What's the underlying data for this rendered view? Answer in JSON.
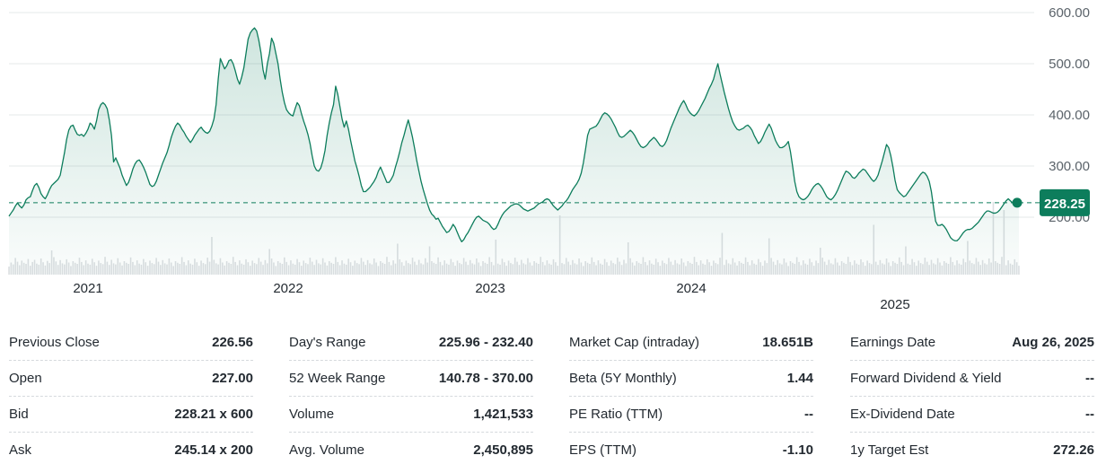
{
  "chart_data": {
    "type": "area",
    "ylim": [
      100,
      620
    ],
    "y_ticks": [
      "600.00",
      "500.00",
      "400.00",
      "300.00",
      "200.00"
    ],
    "y_tick_values": [
      600,
      500,
      400,
      300,
      200
    ],
    "x_tick_labels": [
      "2021",
      "2022",
      "2023",
      "2024",
      "2025"
    ],
    "last_price": 228.25,
    "last_price_label": "228.25",
    "colors": {
      "line": "#0d7d5c",
      "fill": "#0d7d5c",
      "badge_bg": "#0d7d5c",
      "badge_text": "#ffffff",
      "grid": "#e6e8ea",
      "volume": "#dcdfe2",
      "axis_text": "#5b636a"
    },
    "series": [
      {
        "values": [
          202,
          208,
          214,
          222,
          228,
          222,
          218,
          224,
          234,
          238,
          240,
          252,
          262,
          266,
          258,
          246,
          240,
          236,
          244,
          254,
          262,
          266,
          270,
          274,
          282,
          304,
          326,
          352,
          370,
          378,
          380,
          370,
          362,
          360,
          362,
          358,
          364,
          372,
          384,
          380,
          372,
          388,
          410,
          420,
          424,
          420,
          412,
          390,
          360,
          308,
          316,
          306,
          296,
          282,
          272,
          262,
          268,
          280,
          294,
          304,
          310,
          312,
          306,
          298,
          288,
          276,
          264,
          260,
          262,
          270,
          282,
          294,
          306,
          316,
          326,
          340,
          356,
          368,
          378,
          384,
          380,
          372,
          366,
          358,
          352,
          346,
          352,
          360,
          366,
          372,
          376,
          370,
          366,
          364,
          368,
          378,
          392,
          420,
          470,
          510,
          500,
          490,
          496,
          506,
          508,
          500,
          486,
          470,
          460,
          474,
          492,
          520,
          548,
          560,
          566,
          570,
          564,
          546,
          522,
          488,
          470,
          500,
          520,
          550,
          540,
          520,
          500,
          470,
          444,
          424,
          410,
          404,
          400,
          398,
          412,
          424,
          418,
          402,
          388,
          376,
          362,
          344,
          320,
          300,
          292,
          290,
          296,
          310,
          330,
          360,
          384,
          404,
          420,
          456,
          440,
          416,
          392,
          376,
          388,
          372,
          350,
          330,
          310,
          296,
          280,
          262,
          250,
          250,
          254,
          258,
          264,
          270,
          278,
          290,
          298,
          288,
          278,
          268,
          268,
          274,
          282,
          298,
          312,
          328,
          346,
          360,
          376,
          390,
          374,
          356,
          334,
          310,
          290,
          270,
          254,
          240,
          226,
          214,
          206,
          202,
          196,
          198,
          190,
          182,
          176,
          170,
          172,
          178,
          186,
          180,
          170,
          160,
          152,
          156,
          164,
          170,
          178,
          186,
          194,
          200,
          202,
          198,
          194,
          192,
          190,
          186,
          180,
          176,
          178,
          186,
          196,
          204,
          210,
          214,
          218,
          222,
          224,
          226,
          226,
          224,
          220,
          216,
          214,
          212,
          214,
          216,
          218,
          222,
          226,
          228,
          230,
          234,
          236,
          234,
          228,
          222,
          218,
          214,
          218,
          222,
          228,
          232,
          238,
          246,
          254,
          260,
          266,
          274,
          286,
          306,
          332,
          360,
          372,
          374,
          376,
          378,
          384,
          392,
          400,
          404,
          402,
          398,
          392,
          384,
          376,
          366,
          358,
          356,
          358,
          362,
          366,
          370,
          366,
          360,
          352,
          344,
          338,
          336,
          338,
          342,
          348,
          352,
          356,
          352,
          346,
          340,
          338,
          342,
          350,
          362,
          374,
          384,
          394,
          404,
          414,
          422,
          428,
          420,
          410,
          404,
          400,
          398,
          402,
          408,
          416,
          424,
          432,
          442,
          452,
          460,
          470,
          486,
          500,
          480,
          462,
          444,
          428,
          412,
          398,
          386,
          378,
          372,
          370,
          372,
          374,
          378,
          380,
          376,
          370,
          360,
          352,
          344,
          348,
          356,
          366,
          374,
          382,
          374,
          362,
          350,
          342,
          336,
          336,
          338,
          342,
          348,
          328,
          300,
          270,
          250,
          240,
          236,
          234,
          236,
          240,
          246,
          254,
          260,
          264,
          266,
          262,
          256,
          248,
          240,
          236,
          234,
          238,
          244,
          252,
          262,
          272,
          282,
          290,
          288,
          284,
          278,
          276,
          280,
          286,
          290,
          294,
          292,
          286,
          280,
          274,
          270,
          274,
          282,
          296,
          310,
          326,
          342,
          336,
          320,
          298,
          272,
          254,
          248,
          244,
          240,
          242,
          248,
          254,
          260,
          266,
          272,
          278,
          284,
          288,
          286,
          280,
          270,
          250,
          220,
          192,
          184,
          184,
          186,
          182,
          176,
          168,
          160,
          156,
          154,
          154,
          158,
          164,
          170,
          174,
          176,
          176,
          178,
          182,
          186,
          190,
          196,
          202,
          208,
          212,
          212,
          210,
          208,
          208,
          210,
          214,
          220,
          226,
          232,
          236,
          232,
          228,
          226,
          228,
          228
        ]
      }
    ],
    "volume_rel": [
      0.3,
      0.45,
      0.38,
      0.62,
      0.48,
      0.35,
      0.52,
      0.44,
      0.4,
      0.58,
      0.33,
      0.47,
      0.55,
      0.41,
      0.37,
      0.6,
      0.46,
      0.34,
      0.51,
      0.43,
      0.39,
      0.65,
      0.49,
      0.36,
      0.54,
      0.42,
      0.38,
      0.57,
      0.45,
      0.32,
      0.5,
      0.44,
      0.4,
      0.63,
      0.47,
      0.35,
      0.53,
      0.41,
      0.37,
      0.59,
      0.46,
      0.33,
      0.52,
      0.43,
      0.39,
      0.66,
      0.48,
      0.36,
      0.55,
      0.42,
      0.38,
      0.61,
      0.45,
      0.34,
      0.5,
      0.44,
      0.4,
      0.64,
      0.47,
      0.35,
      0.53,
      0.41,
      0.37,
      0.58,
      0.46,
      0.33,
      0.52,
      0.43,
      0.39,
      0.62,
      0.48,
      0.36,
      0.54,
      0.42,
      0.38,
      0.6,
      0.45,
      0.32,
      0.5,
      0.44,
      0.4,
      0.65,
      0.47,
      0.35,
      0.53,
      0.41,
      0.37,
      0.59,
      0.46,
      0.33,
      0.52,
      0.43,
      0.39,
      0.63,
      0.48,
      0.36,
      0.55,
      0.42,
      0.38,
      0.61,
      0.45,
      0.34,
      0.5,
      0.44,
      0.4,
      0.66,
      0.47,
      0.35,
      0.53,
      0.41,
      0.37,
      0.57,
      0.46,
      0.33,
      0.52,
      0.43,
      0.39,
      0.62,
      0.48,
      0.36,
      0.54,
      0.42,
      0.38,
      0.6,
      0.45,
      0.32,
      0.5,
      0.44,
      0.4,
      0.64,
      0.47,
      0.35,
      0.53,
      0.41,
      0.37,
      0.58,
      0.46,
      0.33,
      0.52,
      0.43,
      0.39,
      0.63,
      0.48,
      0.36,
      0.55,
      0.42,
      0.38,
      0.61,
      0.45,
      0.34,
      0.5,
      0.44,
      0.4,
      0.65,
      0.47,
      0.35,
      0.53,
      0.41,
      0.37,
      0.59,
      0.46,
      0.33,
      0.52,
      0.43,
      0.39,
      0.62,
      0.48,
      0.36,
      0.54,
      0.42,
      0.38,
      0.6,
      0.45,
      0.32,
      0.5,
      0.44,
      0.4,
      0.66,
      0.47,
      0.35,
      0.53,
      0.41,
      0.37,
      0.57,
      0.46,
      0.33,
      0.52,
      0.43,
      0.39,
      0.63,
      0.48,
      0.36,
      0.55,
      0.42,
      0.38,
      0.61,
      0.45,
      0.34,
      0.5,
      0.44,
      0.4,
      0.64,
      0.47,
      0.35,
      0.53,
      0.41,
      0.37,
      0.58,
      0.46,
      0.33,
      0.52,
      0.43,
      0.39,
      0.62,
      0.48,
      0.36,
      0.54,
      0.42,
      0.38,
      0.6,
      0.45,
      0.32,
      0.5,
      0.44,
      0.4,
      0.65,
      0.47,
      0.35,
      0.53,
      0.41,
      0.37,
      0.59,
      0.46,
      0.33,
      0.52,
      0.43,
      0.39,
      0.63,
      0.48,
      0.36,
      0.55,
      0.42,
      0.38,
      0.61,
      0.45,
      0.34,
      0.5,
      0.44,
      0.4,
      0.66,
      0.47,
      0.35,
      0.53,
      0.41,
      0.37,
      0.57,
      0.46,
      0.33,
      0.52,
      0.43,
      0.39,
      0.62,
      0.48,
      0.36,
      0.54,
      0.42,
      0.38,
      0.6,
      0.45,
      0.32,
      0.5,
      0.44,
      0.4,
      0.64,
      0.47,
      0.35,
      0.53,
      0.41,
      0.37,
      0.58,
      0.46,
      0.33,
      0.52,
      0.43,
      0.39,
      0.63,
      0.48,
      0.36,
      0.55,
      0.42,
      0.38,
      0.61,
      0.45,
      0.34,
      0.5,
      0.44,
      0.4,
      0.65,
      0.47,
      0.35,
      0.53,
      0.41,
      0.37,
      0.59,
      0.46,
      0.33,
      0.52,
      0.43,
      0.39,
      0.62,
      0.48,
      0.36,
      0.54,
      0.42,
      0.38,
      0.6,
      0.45,
      0.32,
      0.5,
      0.44,
      0.4,
      0.66,
      0.47,
      0.35,
      0.53,
      0.41,
      0.37,
      0.57,
      0.46,
      0.33,
      0.52,
      0.43,
      0.39,
      0.63,
      0.48,
      0.36,
      0.55,
      0.42,
      0.38,
      0.61,
      0.45,
      0.34,
      0.5,
      0.44,
      0.4,
      0.64,
      0.47,
      0.35,
      0.53,
      0.41,
      0.37,
      0.58,
      0.46,
      0.33,
      0.52,
      0.43,
      0.39,
      0.62,
      0.48,
      0.36,
      0.54,
      0.42,
      0.38,
      0.6,
      0.45,
      0.32,
      0.5,
      0.44,
      0.4,
      0.65,
      0.47,
      0.35,
      0.53,
      0.41,
      0.37,
      0.59,
      0.46,
      0.33,
      0.52,
      0.43,
      0.39,
      0.63,
      0.48,
      0.36,
      0.55,
      0.42,
      0.38,
      0.61,
      0.45,
      0.34,
      0.5,
      0.44,
      0.4,
      0.66,
      0.47,
      0.35,
      0.53,
      0.41,
      0.37,
      0.57,
      0.46,
      0.33,
      0.52,
      0.43,
      0.39,
      0.62,
      0.48,
      0.36,
      0.54,
      0.42,
      0.38,
      0.6,
      0.45,
      0.32,
      0.5,
      0.44,
      0.4,
      0.64,
      0.47,
      0.35,
      0.53,
      0.41,
      0.37,
      0.58,
      0.46,
      0.33,
      0.52,
      0.43,
      0.39,
      0.63,
      0.48,
      0.36,
      0.55,
      0.42,
      0.38,
      0.61,
      0.45,
      0.34,
      0.5,
      0.44,
      0.4,
      0.65,
      0.47,
      0.35,
      0.53,
      0.41,
      0.37,
      0.59,
      0.46,
      0.33,
      0.52,
      0.43,
      0.39,
      0.62,
      0.48,
      0.36,
      0.54,
      0.42,
      0.38,
      0.6,
      0.45,
      0.32,
      0.5,
      0.44,
      0.4,
      0.66,
      0.47,
      0.35,
      0.53,
      0.41,
      0.37,
      0.57,
      0.46,
      0.33,
      0.52,
      0.43,
      0.39,
      0.63,
      0.48,
      0.36,
      0.55,
      0.42,
      0.38,
      0.61,
      0.45,
      0.34,
      0.5,
      0.44,
      0.4,
      0.64,
      0.47,
      0.35,
      0.53,
      0.41,
      0.37,
      0.58,
      0.46,
      0.33,
      0.52,
      0.43,
      0.39,
      0.62,
      0.48,
      0.36,
      0.54,
      0.42
    ],
    "volume_spikes": [
      [
        20,
        0.9
      ],
      [
        95,
        1.4
      ],
      [
        122,
        0.95
      ],
      [
        182,
        1.15
      ],
      [
        197,
        1.05
      ],
      [
        228,
        1.3
      ],
      [
        258,
        2.2
      ],
      [
        290,
        1.2
      ],
      [
        334,
        1.55
      ],
      [
        356,
        1.35
      ],
      [
        380,
        1.0
      ],
      [
        405,
        1.85
      ],
      [
        420,
        1.05
      ],
      [
        449,
        1.25
      ],
      [
        461,
        2.7
      ],
      [
        466,
        2.4
      ],
      [
        476,
        1.6
      ],
      [
        482,
        1.5
      ],
      [
        492,
        1.3
      ]
    ]
  },
  "stats": {
    "col1": [
      {
        "label": "Previous Close",
        "value": "226.56"
      },
      {
        "label": "Open",
        "value": "227.00"
      },
      {
        "label": "Bid",
        "value": "228.21 x 600"
      },
      {
        "label": "Ask",
        "value": "245.14 x 200"
      }
    ],
    "col2": [
      {
        "label": "Day's Range",
        "value": "225.96 - 232.40"
      },
      {
        "label": "52 Week Range",
        "value": "140.78 - 370.00"
      },
      {
        "label": "Volume",
        "value": "1,421,533"
      },
      {
        "label": "Avg. Volume",
        "value": "2,450,895"
      }
    ],
    "col3": [
      {
        "label": "Market Cap (intraday)",
        "value": "18.651B"
      },
      {
        "label": "Beta (5Y Monthly)",
        "value": "1.44"
      },
      {
        "label": "PE Ratio (TTM)",
        "value": "--"
      },
      {
        "label": "EPS (TTM)",
        "value": "-1.10"
      }
    ],
    "col4": [
      {
        "label": "Earnings Date",
        "value": "Aug 26, 2025"
      },
      {
        "label": "Forward Dividend & Yield",
        "value": "--"
      },
      {
        "label": "Ex-Dividend Date",
        "value": "--"
      },
      {
        "label": "1y Target Est",
        "value": "272.26"
      }
    ]
  }
}
